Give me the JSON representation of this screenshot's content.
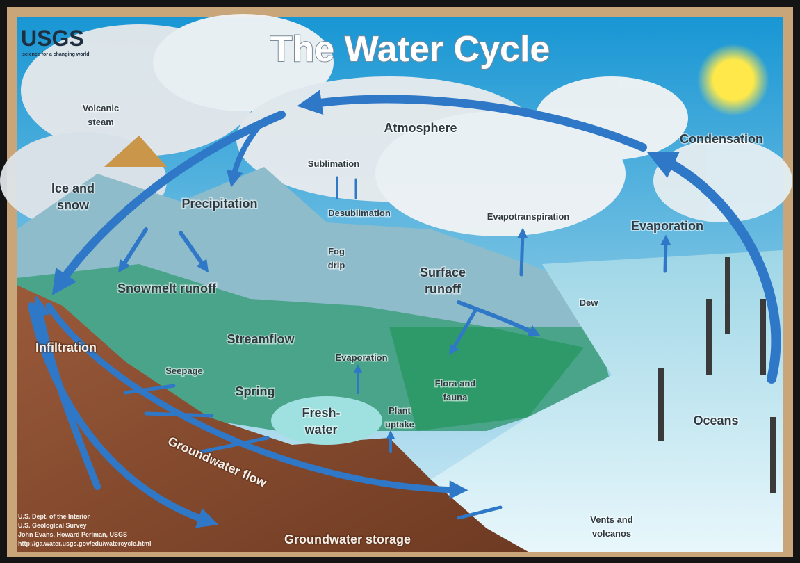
{
  "header": {
    "logo": "USGS",
    "tagline": "science for a changing world",
    "title": "The Water Cycle"
  },
  "labels": [
    {
      "lines": [
        "Volcanic",
        "steam"
      ]
    },
    {
      "lines": [
        "Atmosphere"
      ]
    },
    {
      "lines": [
        "Condensation"
      ]
    },
    {
      "lines": [
        "Sublimation"
      ]
    },
    {
      "lines": [
        "Desublimation"
      ]
    },
    {
      "lines": [
        "Ice and",
        "snow"
      ]
    },
    {
      "lines": [
        "Precipitation"
      ]
    },
    {
      "lines": [
        "Evapotranspiration"
      ]
    },
    {
      "lines": [
        "Evaporation"
      ]
    },
    {
      "lines": [
        "Fog",
        "drip"
      ]
    },
    {
      "lines": [
        "Surface",
        "runoff"
      ]
    },
    {
      "lines": [
        "Snowmelt runoff"
      ]
    },
    {
      "lines": [
        "Dew"
      ]
    },
    {
      "lines": [
        "Streamflow"
      ]
    },
    {
      "lines": [
        "Infiltration"
      ]
    },
    {
      "lines": [
        "Evaporation"
      ]
    },
    {
      "lines": [
        "Seepage"
      ]
    },
    {
      "lines": [
        "Flora and",
        "fauna"
      ]
    },
    {
      "lines": [
        "Spring"
      ]
    },
    {
      "lines": [
        "Fresh-",
        "water"
      ]
    },
    {
      "lines": [
        "Plant",
        "uptake"
      ]
    },
    {
      "lines": [
        "Oceans"
      ]
    },
    {
      "lines": [
        "Groundwater flow"
      ]
    },
    {
      "lines": [
        "Vents and",
        "volcanos"
      ]
    },
    {
      "lines": [
        "Groundwater storage"
      ]
    }
  ],
  "credits": [
    "U.S. Dept. of the Interior",
    "U.S. Geological Survey",
    "John Evans, Howard Perlman, USGS",
    "http://ga.water.usgs.gov/edu/watercycle.html"
  ]
}
